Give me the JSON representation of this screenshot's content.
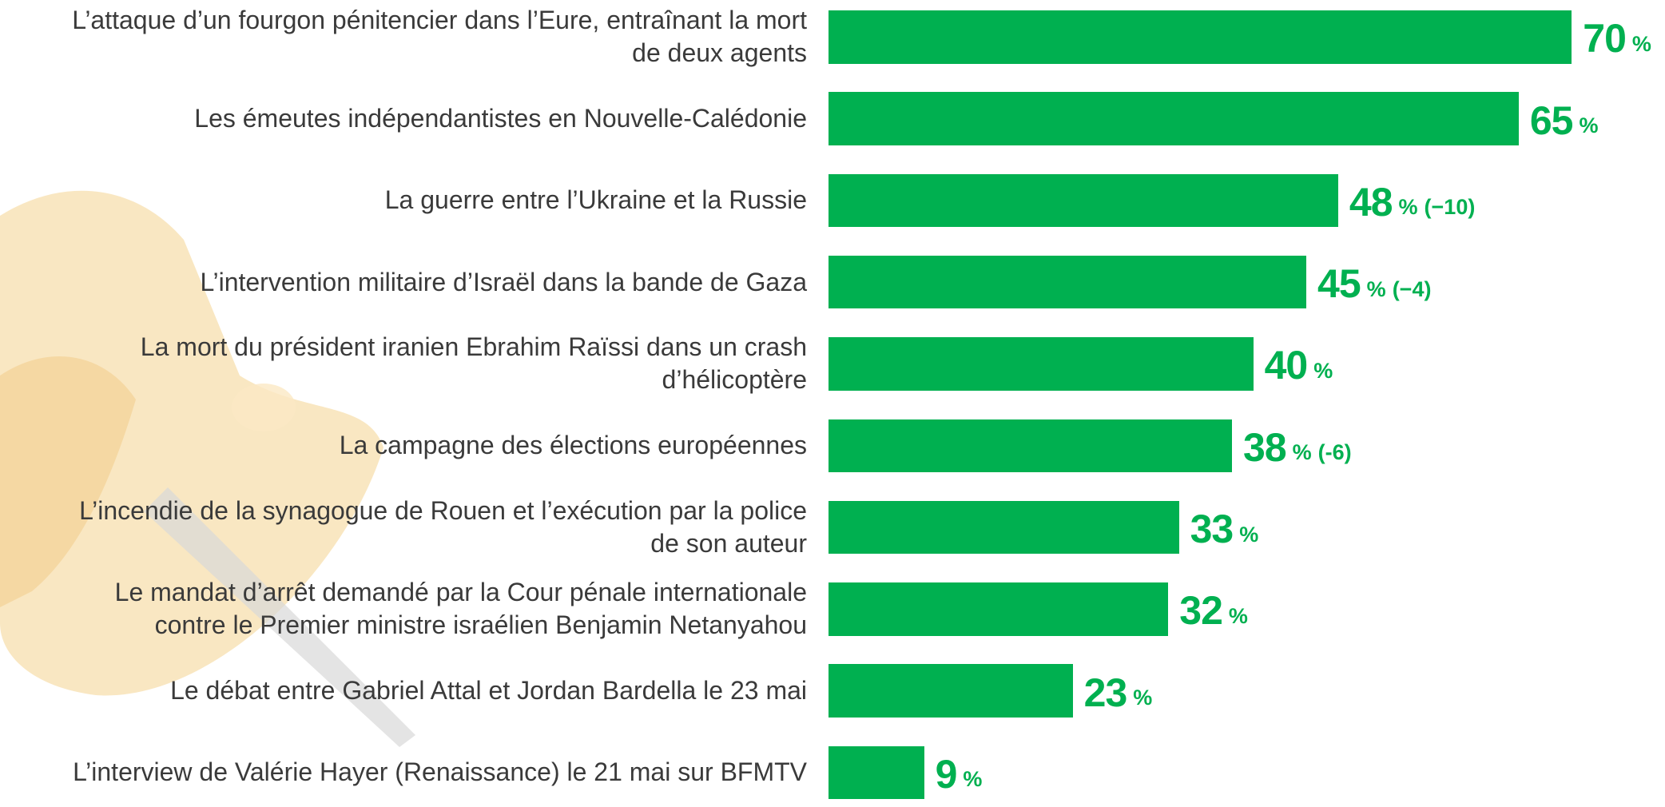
{
  "chart_data": {
    "type": "bar",
    "orientation": "horizontal",
    "color": "#00b050",
    "unit": "%",
    "categories": [
      "L’attaque d’un fourgon pénitencier dans l’Eure, entraînant la mort\nde deux agents",
      "Les émeutes indépendantistes en Nouvelle-Calédonie",
      "La guerre entre l’Ukraine et la Russie",
      "L’intervention militaire d’Israël dans la bande de Gaza",
      "La mort du président iranien Ebrahim Raïssi dans un crash\nd’hélicoptère",
      "La campagne des élections européennes",
      "L’incendie de la synagogue de Rouen et l’exécution par la police\nde son auteur",
      "Le mandat d’arrêt demandé par la Cour pénale internationale\ncontre le Premier ministre israélien Benjamin Netanyahou",
      "Le débat entre Gabriel Attal et Jordan Bardella le 23 mai",
      "L’interview de Valérie Hayer (Renaissance) le 21 mai sur BFMTV"
    ],
    "values": [
      70,
      65,
      48,
      45,
      40,
      38,
      33,
      32,
      23,
      9
    ],
    "changes": [
      null,
      null,
      "(−10)",
      "(−4)",
      null,
      "(-6)",
      null,
      null,
      null,
      null
    ]
  }
}
